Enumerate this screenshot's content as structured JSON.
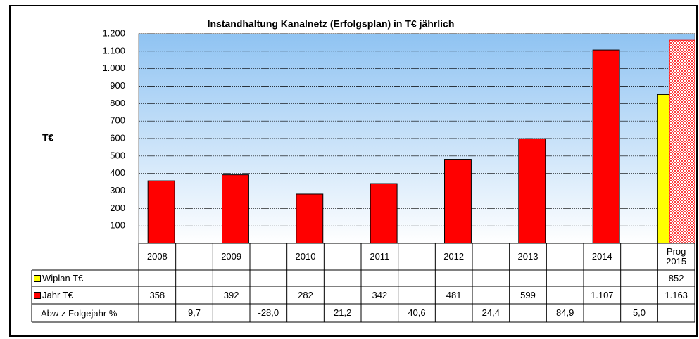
{
  "chart_data": {
    "type": "bar",
    "title": "Instandhaltung Kanalnetz (Erfolgsplan) in T€ jährlich",
    "y_label": "T€",
    "categories": [
      "2008",
      null,
      "2009",
      null,
      "2010",
      null,
      "2011",
      null,
      "2012",
      null,
      "2013",
      null,
      "2014",
      null,
      "Prog 2015"
    ],
    "series": [
      {
        "name": "Wiplan T€",
        "color": "#ffff00",
        "values": [
          null,
          null,
          null,
          null,
          null,
          null,
          null,
          null,
          null,
          null,
          null,
          null,
          null,
          null,
          852
        ]
      },
      {
        "name": "Jahr T€",
        "color": "#ff0000",
        "values": [
          358,
          null,
          392,
          null,
          282,
          null,
          342,
          null,
          481,
          null,
          599,
          null,
          1107,
          null,
          1163
        ],
        "value_labels": [
          "358",
          null,
          "392",
          null,
          "282",
          null,
          "342",
          null,
          "481",
          null,
          "599",
          null,
          "1.107",
          null,
          "1.163"
        ]
      }
    ],
    "data_table": {
      "rows": [
        {
          "name": "Abw z Folgejahr %",
          "values": [
            null,
            9.7,
            null,
            -28.0,
            null,
            21.2,
            null,
            40.6,
            null,
            24.4,
            null,
            84.9,
            null,
            5.0,
            null
          ],
          "value_labels": [
            null,
            "9,7",
            null,
            "-28,0",
            null,
            "21,2",
            null,
            "40,6",
            null,
            "24,4",
            null,
            "84,9",
            null,
            "5,0",
            null
          ]
        }
      ]
    },
    "ylim": [
      0,
      1200
    ],
    "yticks": [
      100,
      200,
      300,
      400,
      500,
      600,
      700,
      800,
      900,
      {
        "value": 1000,
        "label": "1.000"
      },
      {
        "value": 1100,
        "label": "1.100"
      },
      {
        "value": 1200,
        "label": "1.200"
      }
    ],
    "grid": true
  }
}
